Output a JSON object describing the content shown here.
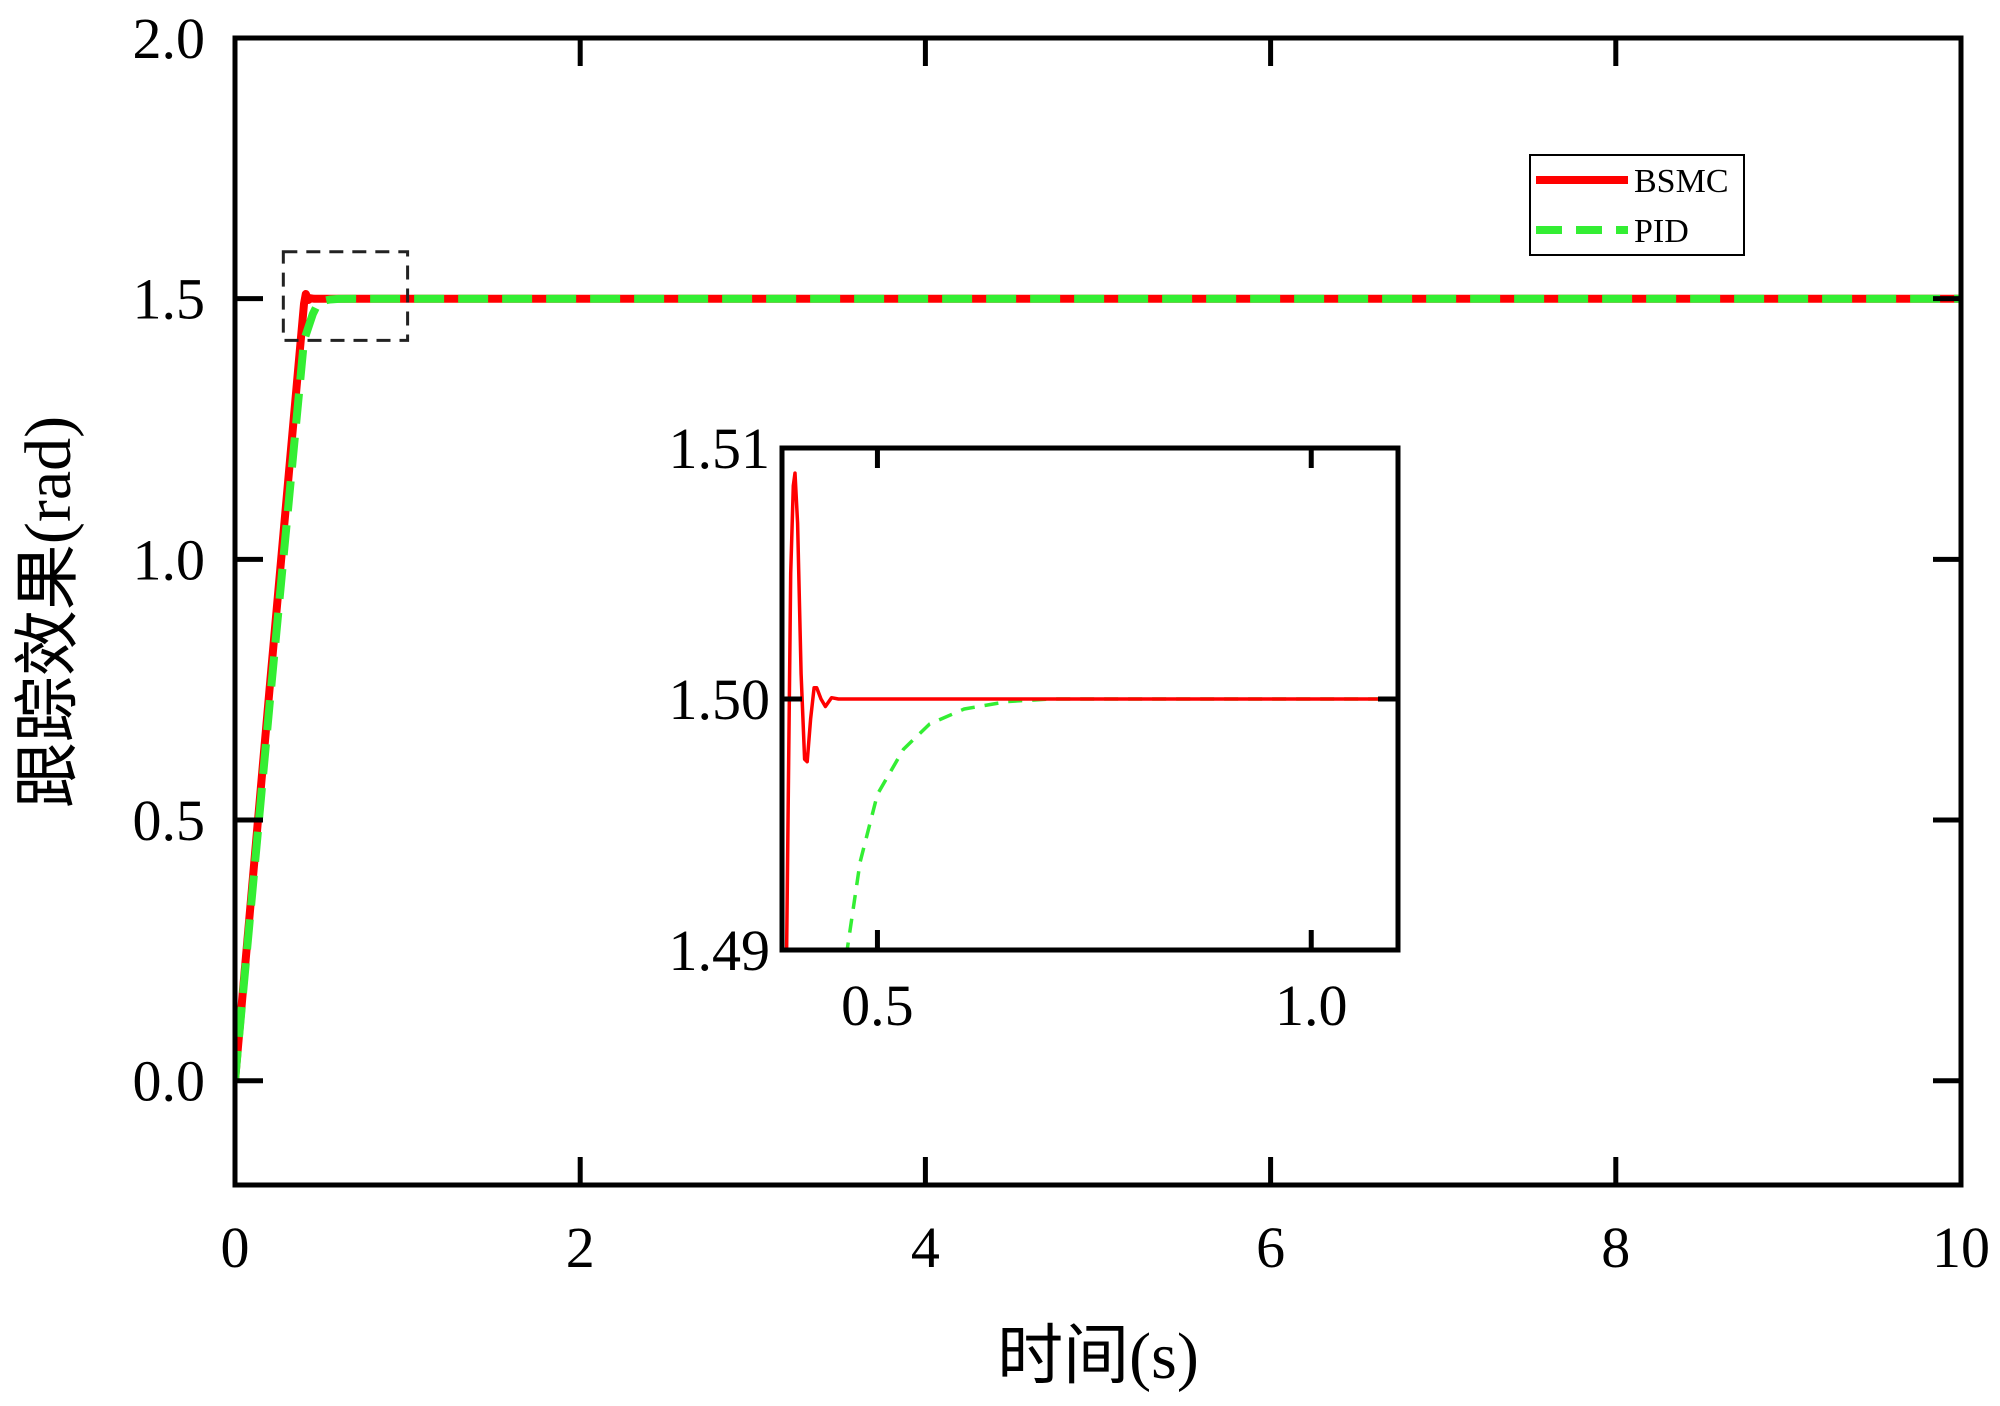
{
  "chart_data": {
    "type": "line",
    "xlabel": "时间(s)",
    "ylabel": "跟踪效果(rad)",
    "xlim": [
      0,
      10
    ],
    "ylim": [
      -0.2,
      2.0
    ],
    "xticks": [
      0,
      2,
      4,
      6,
      8,
      10
    ],
    "xtick_labels": [
      "0",
      "2",
      "4",
      "6",
      "8",
      "10"
    ],
    "yticks": [
      0.0,
      0.5,
      1.0,
      1.5,
      2.0
    ],
    "ytick_labels": [
      "0.0",
      "0.5",
      "1.0",
      "1.5",
      "2.0"
    ],
    "grid": false,
    "legend_position": "top-right",
    "series": [
      {
        "name": "BSMC",
        "color": "#ff0000",
        "style": "solid",
        "points": [
          [
            0,
            0
          ],
          [
            0.2,
            0.75
          ],
          [
            0.4,
            1.49
          ],
          [
            0.41,
            1.509
          ],
          [
            0.425,
            1.4975
          ],
          [
            0.44,
            1.5007
          ],
          [
            0.46,
            1.4998
          ],
          [
            0.48,
            1.5
          ],
          [
            10,
            1.5
          ]
        ]
      },
      {
        "name": "PID",
        "color": "#33ee33",
        "style": "dashed",
        "points": [
          [
            0,
            0
          ],
          [
            0.2,
            0.72
          ],
          [
            0.4,
            1.42
          ],
          [
            0.45,
            1.47
          ],
          [
            0.48,
            1.49
          ],
          [
            0.5,
            1.495
          ],
          [
            0.55,
            1.4985
          ],
          [
            0.6,
            1.4995
          ],
          [
            0.7,
            1.5
          ],
          [
            10,
            1.5
          ]
        ]
      }
    ],
    "zoom_box": {
      "x": [
        0.28,
        1.0
      ],
      "y": [
        1.42,
        1.59
      ]
    },
    "inset": {
      "xlim": [
        0.39,
        1.1
      ],
      "ylim": [
        1.49,
        1.51
      ],
      "xticks": [
        0.5,
        1.0
      ],
      "xtick_labels": [
        "0.5",
        "1.0"
      ],
      "yticks": [
        1.49,
        1.5,
        1.51
      ],
      "ytick_labels": [
        "1.49",
        "1.50",
        "1.51"
      ],
      "series": [
        {
          "name": "BSMC",
          "color": "#ff0000",
          "style": "solid",
          "points": [
            [
              0.395,
              1.4888
            ],
            [
              0.4,
              1.505
            ],
            [
              0.403,
              1.5085
            ],
            [
              0.405,
              1.509
            ],
            [
              0.408,
              1.507
            ],
            [
              0.412,
              1.501
            ],
            [
              0.416,
              1.4976
            ],
            [
              0.419,
              1.4975
            ],
            [
              0.423,
              1.4992
            ],
            [
              0.427,
              1.50045
            ],
            [
              0.43,
              1.50045
            ],
            [
              0.435,
              1.5
            ],
            [
              0.44,
              1.4997
            ],
            [
              0.447,
              1.50005
            ],
            [
              0.455,
              1.5
            ],
            [
              1.1,
              1.5
            ]
          ]
        },
        {
          "name": "PID",
          "color": "#33ee33",
          "style": "dashed",
          "points": [
            [
              0.46,
              1.4888
            ],
            [
              0.48,
              1.4935
            ],
            [
              0.5,
              1.4962
            ],
            [
              0.53,
              1.498
            ],
            [
              0.56,
              1.499
            ],
            [
              0.6,
              1.4996
            ],
            [
              0.65,
              1.4999
            ],
            [
              0.7,
              1.5
            ],
            [
              1.1,
              1.5
            ]
          ]
        }
      ]
    }
  }
}
